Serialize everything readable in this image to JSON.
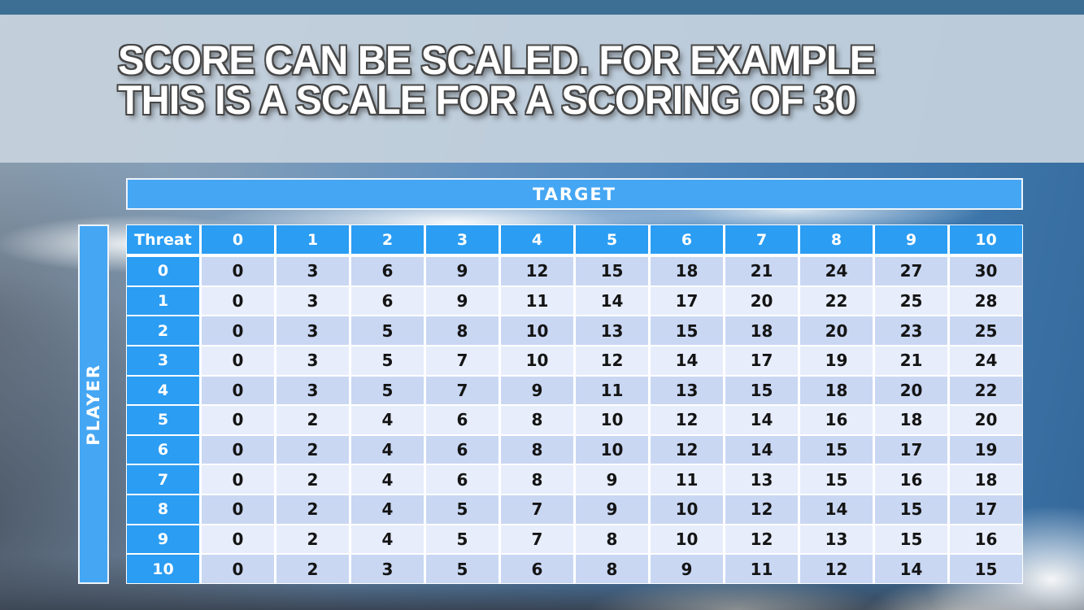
{
  "slide": {
    "title_line1": "SCORE CAN BE SCALED. FOR EXAMPLE",
    "title_line2": "THIS IS A SCALE FOR A SCORING OF 30"
  },
  "matrix": {
    "target_label": "TARGET",
    "player_label": "PLAYER",
    "corner_label": "Threat",
    "column_headers": [
      "0",
      "1",
      "2",
      "3",
      "4",
      "5",
      "6",
      "7",
      "8",
      "9",
      "10"
    ],
    "row_headers": [
      "0",
      "1",
      "2",
      "3",
      "4",
      "5",
      "6",
      "7",
      "8",
      "9",
      "10"
    ],
    "rows": [
      [
        0,
        3,
        6,
        9,
        12,
        15,
        18,
        21,
        24,
        27,
        30
      ],
      [
        0,
        3,
        6,
        9,
        11,
        14,
        17,
        20,
        22,
        25,
        28
      ],
      [
        0,
        3,
        5,
        8,
        10,
        13,
        15,
        18,
        20,
        23,
        25
      ],
      [
        0,
        3,
        5,
        7,
        10,
        12,
        14,
        17,
        19,
        21,
        24
      ],
      [
        0,
        3,
        5,
        7,
        9,
        11,
        13,
        15,
        18,
        20,
        22
      ],
      [
        0,
        2,
        4,
        6,
        8,
        10,
        12,
        14,
        16,
        18,
        20
      ],
      [
        0,
        2,
        4,
        6,
        8,
        10,
        12,
        14,
        15,
        17,
        19
      ],
      [
        0,
        2,
        4,
        6,
        8,
        9,
        11,
        13,
        15,
        16,
        18
      ],
      [
        0,
        2,
        4,
        5,
        7,
        9,
        10,
        12,
        14,
        15,
        17
      ],
      [
        0,
        2,
        4,
        5,
        7,
        8,
        10,
        12,
        13,
        15,
        16
      ],
      [
        0,
        2,
        3,
        5,
        6,
        8,
        9,
        11,
        12,
        14,
        15
      ]
    ]
  },
  "colors": {
    "header_blue": "#2b9df3",
    "banner_blue": "#45a6f3",
    "row_even": "#c9d7f3",
    "row_odd": "#e7edfb",
    "cell_text": "#141414",
    "top_bar": "#3d6f94",
    "title_band": "#c7d2dd",
    "title_text": "#ffffff",
    "title_outline": "#474747"
  }
}
